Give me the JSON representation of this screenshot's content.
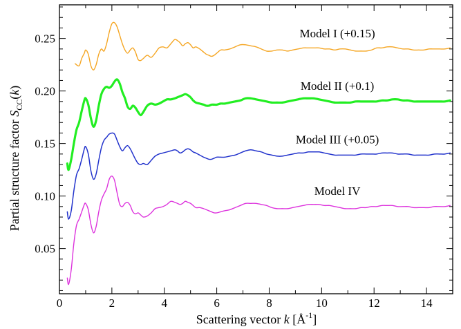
{
  "chart_data": {
    "type": "line",
    "title": "",
    "xlabel": {
      "prefix": "Scattering vector ",
      "var": "k",
      "unit_open": " [",
      "unit": "Å",
      "unit_sup": "-1",
      "unit_close": "]"
    },
    "ylabel": {
      "prefix": "Partial structure factor ",
      "var": "S",
      "sub": "CC",
      "arg_open": "(",
      "arg": "k",
      "arg_close": ")"
    },
    "xlim": [
      0,
      15
    ],
    "ylim": [
      0.007,
      0.282
    ],
    "xticks": [
      0,
      2,
      4,
      6,
      8,
      10,
      12,
      14
    ],
    "xtick_labels": [
      "0",
      "2",
      "4",
      "6",
      "8",
      "10",
      "12",
      "14"
    ],
    "yticks": [
      0.05,
      0.1,
      0.15,
      0.2,
      0.25
    ],
    "ytick_labels": [
      "0.05",
      "0.10",
      "0.15",
      "0.20",
      "0.25"
    ],
    "grid": false,
    "legend": "none",
    "series": [
      {
        "name": "Model I (+0.15)",
        "color": "#f5a623",
        "width": 1.4,
        "label_pos": [
          10.6,
          0.251
        ],
        "x": [
          0.6,
          0.75,
          0.85,
          0.95,
          1.0,
          1.1,
          1.2,
          1.3,
          1.4,
          1.5,
          1.6,
          1.7,
          1.8,
          1.9,
          2.0,
          2.1,
          2.2,
          2.3,
          2.4,
          2.5,
          2.6,
          2.7,
          2.8,
          2.9,
          3.0,
          3.1,
          3.2,
          3.35,
          3.5,
          3.65,
          3.8,
          3.95,
          4.1,
          4.25,
          4.4,
          4.5,
          4.6,
          4.7,
          4.8,
          4.9,
          5.0,
          5.1,
          5.2,
          5.35,
          5.5,
          5.6,
          5.7,
          5.8,
          5.9,
          6.0,
          6.15,
          6.3,
          6.5,
          6.7,
          6.9,
          7.1,
          7.3,
          7.5,
          7.7,
          7.9,
          8.1,
          8.3,
          8.5,
          8.7,
          8.9,
          9.1,
          9.3,
          9.5,
          9.7,
          9.9,
          10.1,
          10.3,
          10.5,
          10.7,
          10.9,
          11.1,
          11.3,
          11.5,
          11.7,
          11.9,
          12.1,
          12.3,
          12.5,
          12.7,
          12.9,
          13.1,
          13.3,
          13.5,
          13.7,
          13.9,
          14.1,
          14.3,
          14.5,
          14.7,
          14.9
        ],
        "y": [
          0.226,
          0.224,
          0.231,
          0.236,
          0.239,
          0.235,
          0.224,
          0.22,
          0.225,
          0.235,
          0.24,
          0.238,
          0.245,
          0.256,
          0.264,
          0.265,
          0.261,
          0.253,
          0.245,
          0.239,
          0.236,
          0.239,
          0.241,
          0.237,
          0.23,
          0.229,
          0.231,
          0.234,
          0.232,
          0.236,
          0.241,
          0.242,
          0.241,
          0.245,
          0.249,
          0.248,
          0.246,
          0.243,
          0.245,
          0.246,
          0.244,
          0.241,
          0.242,
          0.24,
          0.237,
          0.235,
          0.234,
          0.233,
          0.234,
          0.236,
          0.239,
          0.239,
          0.24,
          0.242,
          0.244,
          0.244,
          0.243,
          0.242,
          0.24,
          0.238,
          0.238,
          0.239,
          0.239,
          0.238,
          0.239,
          0.24,
          0.241,
          0.241,
          0.241,
          0.241,
          0.24,
          0.24,
          0.239,
          0.24,
          0.24,
          0.239,
          0.238,
          0.238,
          0.238,
          0.239,
          0.241,
          0.241,
          0.242,
          0.242,
          0.241,
          0.24,
          0.24,
          0.239,
          0.239,
          0.239,
          0.24,
          0.24,
          0.24,
          0.24,
          0.241
        ]
      },
      {
        "name": "Model II (+0.1)",
        "color": "#22ee22",
        "width": 3.2,
        "label_pos": [
          10.6,
          0.201
        ],
        "x": [
          0.3,
          0.35,
          0.45,
          0.55,
          0.65,
          0.75,
          0.85,
          0.95,
          1.0,
          1.1,
          1.2,
          1.3,
          1.4,
          1.5,
          1.6,
          1.7,
          1.8,
          1.9,
          2.0,
          2.1,
          2.2,
          2.3,
          2.4,
          2.5,
          2.6,
          2.7,
          2.8,
          2.9,
          3.0,
          3.1,
          3.2,
          3.35,
          3.5,
          3.65,
          3.8,
          3.95,
          4.1,
          4.25,
          4.4,
          4.5,
          4.6,
          4.7,
          4.8,
          4.9,
          5.0,
          5.1,
          5.2,
          5.35,
          5.5,
          5.6,
          5.7,
          5.8,
          5.9,
          6.0,
          6.15,
          6.3,
          6.5,
          6.7,
          6.9,
          7.1,
          7.3,
          7.5,
          7.7,
          7.9,
          8.1,
          8.3,
          8.5,
          8.7,
          8.9,
          9.1,
          9.3,
          9.5,
          9.7,
          9.9,
          10.1,
          10.3,
          10.5,
          10.7,
          10.9,
          11.1,
          11.3,
          11.5,
          11.7,
          11.9,
          12.1,
          12.3,
          12.5,
          12.7,
          12.9,
          13.1,
          13.3,
          13.5,
          13.7,
          13.9,
          14.1,
          14.3,
          14.5,
          14.7,
          14.9
        ],
        "y": [
          0.131,
          0.125,
          0.135,
          0.15,
          0.163,
          0.17,
          0.181,
          0.191,
          0.193,
          0.187,
          0.174,
          0.166,
          0.172,
          0.186,
          0.197,
          0.202,
          0.204,
          0.203,
          0.205,
          0.209,
          0.211,
          0.207,
          0.199,
          0.193,
          0.185,
          0.183,
          0.186,
          0.184,
          0.18,
          0.177,
          0.18,
          0.186,
          0.188,
          0.187,
          0.188,
          0.19,
          0.192,
          0.192,
          0.193,
          0.194,
          0.195,
          0.196,
          0.197,
          0.196,
          0.194,
          0.191,
          0.189,
          0.188,
          0.187,
          0.186,
          0.186,
          0.187,
          0.187,
          0.187,
          0.188,
          0.188,
          0.189,
          0.19,
          0.191,
          0.193,
          0.193,
          0.192,
          0.191,
          0.19,
          0.189,
          0.189,
          0.189,
          0.19,
          0.191,
          0.192,
          0.193,
          0.193,
          0.193,
          0.192,
          0.191,
          0.19,
          0.189,
          0.189,
          0.189,
          0.189,
          0.19,
          0.19,
          0.19,
          0.19,
          0.19,
          0.191,
          0.191,
          0.192,
          0.192,
          0.191,
          0.191,
          0.19,
          0.19,
          0.19,
          0.19,
          0.19,
          0.19,
          0.19,
          0.191
        ]
      },
      {
        "name": "Model III (+0.05)",
        "color": "#2233cc",
        "width": 1.5,
        "label_pos": [
          10.6,
          0.15
        ],
        "x": [
          0.3,
          0.35,
          0.45,
          0.55,
          0.65,
          0.75,
          0.85,
          0.95,
          1.0,
          1.1,
          1.2,
          1.3,
          1.4,
          1.5,
          1.6,
          1.7,
          1.8,
          1.9,
          2.0,
          2.1,
          2.2,
          2.3,
          2.4,
          2.5,
          2.6,
          2.7,
          2.8,
          2.9,
          3.0,
          3.1,
          3.2,
          3.35,
          3.5,
          3.65,
          3.8,
          3.95,
          4.1,
          4.25,
          4.4,
          4.5,
          4.6,
          4.7,
          4.8,
          4.9,
          5.0,
          5.1,
          5.2,
          5.35,
          5.5,
          5.6,
          5.7,
          5.8,
          5.9,
          6.0,
          6.15,
          6.3,
          6.5,
          6.7,
          6.9,
          7.1,
          7.3,
          7.5,
          7.7,
          7.9,
          8.1,
          8.3,
          8.5,
          8.7,
          8.9,
          9.1,
          9.3,
          9.5,
          9.7,
          9.9,
          10.1,
          10.3,
          10.5,
          10.7,
          10.9,
          11.1,
          11.3,
          11.5,
          11.7,
          11.9,
          12.1,
          12.3,
          12.5,
          12.7,
          12.9,
          13.1,
          13.3,
          13.5,
          13.7,
          13.9,
          14.1,
          14.3,
          14.5,
          14.7,
          14.9
        ],
        "y": [
          0.085,
          0.078,
          0.086,
          0.105,
          0.12,
          0.126,
          0.135,
          0.145,
          0.147,
          0.14,
          0.124,
          0.116,
          0.121,
          0.134,
          0.146,
          0.153,
          0.156,
          0.159,
          0.16,
          0.159,
          0.153,
          0.147,
          0.143,
          0.146,
          0.148,
          0.145,
          0.14,
          0.135,
          0.131,
          0.13,
          0.131,
          0.13,
          0.134,
          0.138,
          0.14,
          0.141,
          0.142,
          0.143,
          0.144,
          0.143,
          0.141,
          0.142,
          0.144,
          0.145,
          0.144,
          0.142,
          0.141,
          0.139,
          0.137,
          0.136,
          0.135,
          0.135,
          0.136,
          0.137,
          0.137,
          0.137,
          0.138,
          0.139,
          0.141,
          0.143,
          0.144,
          0.143,
          0.142,
          0.14,
          0.139,
          0.138,
          0.138,
          0.139,
          0.14,
          0.141,
          0.141,
          0.142,
          0.142,
          0.142,
          0.141,
          0.14,
          0.139,
          0.139,
          0.139,
          0.139,
          0.139,
          0.14,
          0.14,
          0.14,
          0.14,
          0.141,
          0.141,
          0.141,
          0.14,
          0.14,
          0.14,
          0.139,
          0.139,
          0.139,
          0.139,
          0.14,
          0.14,
          0.14,
          0.141
        ]
      },
      {
        "name": "Model IV",
        "color": "#dd33dd",
        "width": 1.4,
        "label_pos": [
          10.6,
          0.101
        ],
        "x": [
          0.3,
          0.35,
          0.45,
          0.55,
          0.65,
          0.75,
          0.85,
          0.95,
          1.0,
          1.1,
          1.2,
          1.3,
          1.4,
          1.5,
          1.6,
          1.7,
          1.8,
          1.9,
          2.0,
          2.1,
          2.2,
          2.3,
          2.4,
          2.5,
          2.6,
          2.7,
          2.8,
          2.9,
          3.0,
          3.1,
          3.2,
          3.35,
          3.5,
          3.65,
          3.8,
          3.95,
          4.1,
          4.25,
          4.4,
          4.5,
          4.6,
          4.7,
          4.8,
          4.9,
          5.0,
          5.1,
          5.2,
          5.35,
          5.5,
          5.6,
          5.7,
          5.8,
          5.9,
          6.0,
          6.15,
          6.3,
          6.5,
          6.7,
          6.9,
          7.1,
          7.3,
          7.5,
          7.7,
          7.9,
          8.1,
          8.3,
          8.5,
          8.7,
          8.9,
          9.1,
          9.3,
          9.5,
          9.7,
          9.9,
          10.1,
          10.3,
          10.5,
          10.7,
          10.9,
          11.1,
          11.3,
          11.5,
          11.7,
          11.9,
          12.1,
          12.3,
          12.5,
          12.7,
          12.9,
          13.1,
          13.3,
          13.5,
          13.7,
          13.9,
          14.1,
          14.3,
          14.5,
          14.7,
          14.9
        ],
        "y": [
          0.022,
          0.016,
          0.03,
          0.055,
          0.072,
          0.078,
          0.085,
          0.092,
          0.093,
          0.087,
          0.073,
          0.065,
          0.071,
          0.085,
          0.096,
          0.102,
          0.107,
          0.116,
          0.119,
          0.115,
          0.103,
          0.092,
          0.09,
          0.093,
          0.094,
          0.091,
          0.085,
          0.083,
          0.084,
          0.082,
          0.08,
          0.081,
          0.084,
          0.088,
          0.089,
          0.09,
          0.092,
          0.095,
          0.094,
          0.093,
          0.092,
          0.093,
          0.095,
          0.094,
          0.093,
          0.091,
          0.089,
          0.089,
          0.088,
          0.087,
          0.086,
          0.085,
          0.084,
          0.084,
          0.085,
          0.086,
          0.087,
          0.089,
          0.091,
          0.093,
          0.093,
          0.093,
          0.092,
          0.091,
          0.089,
          0.088,
          0.088,
          0.088,
          0.089,
          0.09,
          0.091,
          0.092,
          0.092,
          0.092,
          0.091,
          0.091,
          0.09,
          0.089,
          0.088,
          0.088,
          0.088,
          0.089,
          0.089,
          0.09,
          0.09,
          0.091,
          0.091,
          0.091,
          0.09,
          0.09,
          0.09,
          0.089,
          0.089,
          0.089,
          0.089,
          0.09,
          0.09,
          0.09,
          0.091
        ]
      }
    ]
  }
}
